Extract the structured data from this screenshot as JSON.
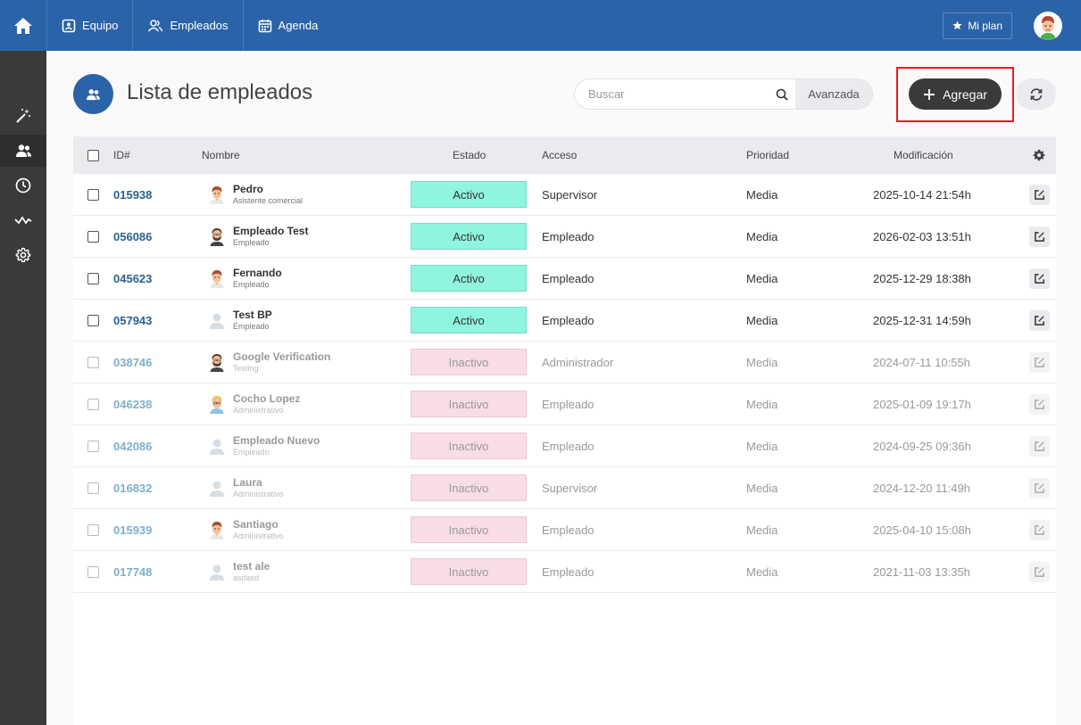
{
  "topnav": {
    "items": [
      {
        "label": "Equipo",
        "icon": "id-card-icon"
      },
      {
        "label": "Empleados",
        "icon": "users-icon"
      },
      {
        "label": "Agenda",
        "icon": "calendar-icon"
      }
    ],
    "plan_label": "Mi plan"
  },
  "page": {
    "title": "Lista de empleados",
    "search_placeholder": "Buscar",
    "advanced_label": "Avanzada",
    "add_label": "Agregar"
  },
  "table": {
    "headers": {
      "id": "ID#",
      "name": "Nombre",
      "status": "Estado",
      "access": "Acceso",
      "priority": "Prioridad",
      "modified": "Modificación"
    },
    "rows": [
      {
        "id": "015938",
        "name": "Pedro",
        "role": "Asistente comercial",
        "status": "Activo",
        "access": "Supervisor",
        "priority": "Media",
        "modified": "2025-10-14 21:54h",
        "active": true,
        "avatar": "man-avatar"
      },
      {
        "id": "056086",
        "name": "Empleado Test",
        "role": "Empleado",
        "status": "Activo",
        "access": "Empleado",
        "priority": "Media",
        "modified": "2026-02-03 13:51h",
        "active": true,
        "avatar": "bearded-man-avatar"
      },
      {
        "id": "045623",
        "name": "Fernando",
        "role": "Empleado",
        "status": "Activo",
        "access": "Empleado",
        "priority": "Media",
        "modified": "2025-12-29 18:38h",
        "active": true,
        "avatar": "man-avatar"
      },
      {
        "id": "057943",
        "name": "Test BP",
        "role": "Empleado",
        "status": "Activo",
        "access": "Empleado",
        "priority": "Media",
        "modified": "2025-12-31 14:59h",
        "active": true,
        "avatar": "default-avatar"
      },
      {
        "id": "038746",
        "name": "Google Verification",
        "role": "Testing",
        "status": "Inactivo",
        "access": "Administrador",
        "priority": "Media",
        "modified": "2024-07-11 10:55h",
        "active": false,
        "avatar": "bearded-man-avatar"
      },
      {
        "id": "046238",
        "name": "Cocho Lopez",
        "role": "Administrativo",
        "status": "Inactivo",
        "access": "Empleado",
        "priority": "Media",
        "modified": "2025-01-09 19:17h",
        "active": false,
        "avatar": "blond-man-avatar"
      },
      {
        "id": "042086",
        "name": "Empleado Nuevo",
        "role": "Empleado",
        "status": "Inactivo",
        "access": "Empleado",
        "priority": "Media",
        "modified": "2024-09-25 09:36h",
        "active": false,
        "avatar": "default-avatar"
      },
      {
        "id": "016832",
        "name": "Laura",
        "role": "Administrativo",
        "status": "Inactivo",
        "access": "Supervisor",
        "priority": "Media",
        "modified": "2024-12-20 11:49h",
        "active": false,
        "avatar": "default-avatar"
      },
      {
        "id": "015939",
        "name": "Santiago",
        "role": "Administrativo",
        "status": "Inactivo",
        "access": "Empleado",
        "priority": "Media",
        "modified": "2025-04-10 15:08h",
        "active": false,
        "avatar": "man-avatar"
      },
      {
        "id": "017748",
        "name": "test ale",
        "role": "asdasd",
        "status": "Inactivo",
        "access": "Empleado",
        "priority": "Media",
        "modified": "2021-11-03 13:35h",
        "active": false,
        "avatar": "default-avatar"
      }
    ]
  },
  "colors": {
    "primary": "#2b63a8",
    "sidebar": "#3a3a3a",
    "active_status": "#8ff5de",
    "inactive_status": "#f8dde8",
    "highlight": "#e51c23"
  }
}
